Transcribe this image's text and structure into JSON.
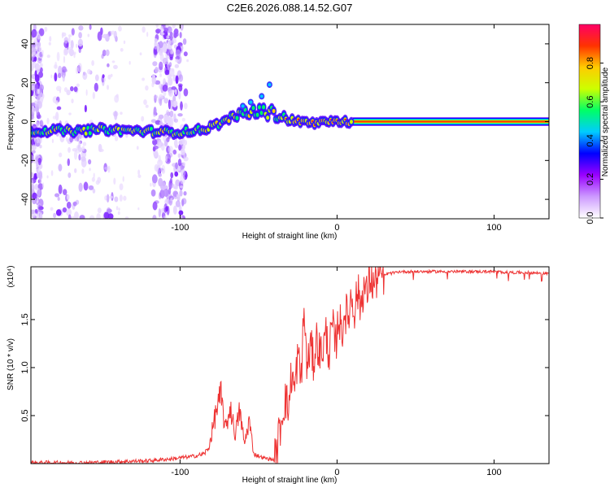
{
  "chart_data": [
    {
      "type": "heatmap",
      "title": "C2E6.2026.088.14.52.G07",
      "xlabel": "Height of straight line (km)",
      "ylabel": "Frequency (Hz)",
      "xlim": [
        -195,
        135
      ],
      "ylim": [
        -50,
        50
      ],
      "x_ticks": [
        -100,
        0,
        100
      ],
      "x_tick_labels": [
        "-100",
        "0",
        "100"
      ],
      "y_ticks": [
        -40,
        -20,
        0,
        20,
        40
      ],
      "y_tick_labels": [
        "-40",
        "-20",
        "0",
        "20",
        "40"
      ],
      "ridge": {
        "x": [
          -195,
          -180,
          -165,
          -150,
          -135,
          -120,
          -105,
          -95,
          -85,
          -75,
          -65,
          -55,
          -45,
          -40,
          -35,
          -30,
          -25,
          -20,
          -15,
          -10,
          -5,
          0,
          10,
          135
        ],
        "y": [
          -5,
          -4.5,
          -5,
          -4,
          -4.5,
          -5,
          -5.5,
          -5,
          -4,
          -1,
          3,
          5,
          5,
          4,
          3,
          1,
          0,
          0,
          -1,
          -0.5,
          0,
          0,
          0,
          0
        ]
      },
      "noise_bands": [
        {
          "x_from": -195,
          "x_to": -188,
          "level": "high"
        },
        {
          "x_from": -180,
          "x_to": -160,
          "level": "medium"
        },
        {
          "x_from": -158,
          "x_to": -140,
          "level": "low"
        },
        {
          "x_from": -117,
          "x_to": -105,
          "level": "high"
        },
        {
          "x_from": -104,
          "x_to": -96,
          "level": "medium"
        }
      ],
      "colorbar": {
        "label": "Normalized spectral amplitude",
        "range": [
          0.0,
          1.0
        ],
        "ticks": [
          0.0,
          0.2,
          0.4,
          0.6,
          0.8
        ],
        "tick_labels": [
          "0.0",
          "0.2",
          "0.4",
          "0.6",
          "0.8"
        ],
        "colors": [
          "#ffffff",
          "#cc99ff",
          "#9900ff",
          "#0000ff",
          "#00ccff",
          "#00ff66",
          "#ccff00",
          "#ffcc00",
          "#ff3300",
          "#ff0066"
        ]
      }
    },
    {
      "type": "line",
      "xlabel": "Height of straight line (km)",
      "ylabel": "SNR (10 * v/v)",
      "y_multiplier": "(x10⁴)",
      "xlim": [
        -195,
        135
      ],
      "ylim": [
        0,
        2.05
      ],
      "x_ticks": [
        -100,
        0,
        100
      ],
      "x_tick_labels": [
        "-100",
        "0",
        "100"
      ],
      "y_ticks": [
        0.5,
        1.0,
        1.5
      ],
      "y_tick_labels": [
        "0.5",
        "1.0",
        "1.5"
      ],
      "color": "#ee3333",
      "series": [
        {
          "name": "SNR",
          "x": [
            -195,
            -180,
            -160,
            -140,
            -120,
            -105,
            -95,
            -90,
            -85,
            -82,
            -80,
            -77,
            -74,
            -71,
            -68,
            -65,
            -62,
            -59,
            -56,
            -53,
            -50,
            -47,
            -44,
            -41,
            -39,
            -37,
            -35,
            -33,
            -31,
            -29,
            -27,
            -25,
            -23,
            -21,
            -19,
            -17,
            -15,
            -13,
            -11,
            -9,
            -7,
            -5,
            -3,
            -1,
            1,
            3,
            5,
            7,
            9,
            11,
            13,
            15,
            17,
            19,
            21,
            23,
            25,
            28,
            31,
            34,
            37,
            40,
            45,
            50,
            60,
            70,
            80,
            90,
            100,
            110,
            120,
            135
          ],
          "y": [
            0.01,
            0.01,
            0.01,
            0.02,
            0.03,
            0.05,
            0.07,
            0.08,
            0.1,
            0.15,
            0.3,
            0.55,
            0.7,
            0.35,
            0.6,
            0.3,
            0.55,
            0.2,
            0.45,
            0.1,
            0.08,
            0.06,
            0.05,
            0.04,
            0.06,
            0.3,
            0.5,
            0.7,
            0.55,
            0.95,
            0.75,
            1.15,
            0.85,
            1.6,
            0.95,
            1.25,
            1.05,
            1.3,
            1.15,
            1.2,
            1.35,
            1.15,
            1.45,
            1.2,
            1.55,
            1.35,
            1.6,
            1.5,
            1.75,
            1.6,
            1.8,
            1.65,
            1.85,
            1.75,
            1.95,
            1.85,
            1.92,
            1.95,
            1.97,
            1.98,
            1.99,
            2.0,
            2.0,
            2.0,
            2.0,
            2.0,
            2.0,
            2.0,
            2.0,
            1.99,
            1.99,
            1.98
          ]
        }
      ]
    }
  ]
}
